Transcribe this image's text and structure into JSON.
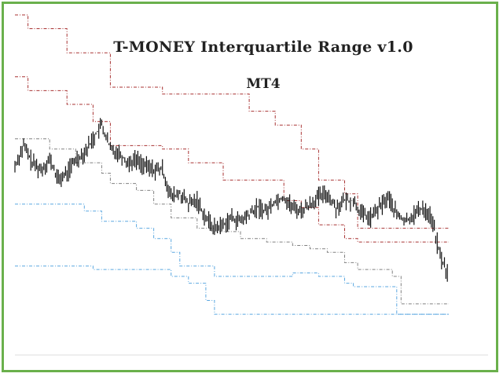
{
  "chart_data": {
    "type": "line",
    "title": "T-MONEY Interquartile Range v1.0",
    "subtitle": "MT4",
    "xlabel": "",
    "ylabel": "",
    "grid": false,
    "legend": "none",
    "ylim": [
      0,
      100
    ],
    "xlim": [
      0,
      100
    ],
    "price": {
      "name": "",
      "color": "#111111",
      "x": [
        0,
        2,
        4,
        6,
        8,
        10,
        12,
        14,
        16,
        18,
        20,
        22,
        24,
        26,
        28,
        30,
        32,
        34,
        36,
        38,
        40,
        42,
        44,
        46,
        48,
        50,
        52,
        54,
        56,
        58,
        60,
        62,
        64,
        66,
        68,
        70,
        72,
        74,
        76,
        78,
        80,
        82,
        84,
        86,
        88,
        90,
        92,
        94,
        96,
        98,
        100
      ],
      "y": [
        56,
        62,
        57,
        55,
        58,
        52,
        54,
        58,
        60,
        64,
        68,
        61,
        60,
        57,
        58,
        56,
        55,
        55,
        47,
        48,
        45,
        46,
        41,
        38,
        39,
        41,
        40,
        42,
        44,
        43,
        46,
        47,
        44,
        43,
        45,
        47,
        48,
        44,
        46,
        46,
        42,
        41,
        44,
        47,
        42,
        40,
        42,
        44,
        41,
        30,
        24
      ]
    },
    "bands": [
      {
        "name": "",
        "color": "#a83232",
        "x": [
          0,
          3,
          3,
          12,
          12,
          22,
          22,
          34,
          34,
          40,
          40,
          48,
          48,
          54,
          54,
          60,
          60,
          66,
          66,
          70,
          70,
          76,
          76,
          79,
          79,
          100
        ],
        "y": [
          100,
          100,
          96,
          96,
          89,
          89,
          79,
          79,
          77,
          77,
          77,
          77,
          77,
          77,
          72,
          72,
          68,
          68,
          61,
          61,
          52,
          52,
          48,
          48,
          38,
          38
        ]
      },
      {
        "name": "",
        "color": "#a83232",
        "x": [
          0,
          3,
          3,
          12,
          12,
          18,
          18,
          22,
          22,
          34,
          34,
          40,
          40,
          48,
          48,
          56,
          56,
          62,
          62,
          66,
          66,
          70,
          70,
          76,
          76,
          79,
          79,
          100
        ],
        "y": [
          82,
          82,
          78,
          78,
          74,
          74,
          69,
          69,
          62,
          62,
          61,
          61,
          57,
          57,
          52,
          52,
          52,
          52,
          46,
          46,
          44,
          44,
          39,
          39,
          35,
          35,
          34,
          34
        ]
      },
      {
        "name": "",
        "color": "#808080",
        "x": [
          0,
          8,
          8,
          14,
          14,
          20,
          20,
          22,
          22,
          28,
          28,
          32,
          32,
          36,
          36,
          42,
          42,
          46,
          46,
          52,
          52,
          58,
          58,
          64,
          64,
          68,
          68,
          72,
          72,
          76,
          76,
          79,
          79,
          82,
          82,
          87,
          87,
          89,
          89,
          100
        ],
        "y": [
          64,
          64,
          61,
          61,
          57,
          57,
          54,
          54,
          51,
          51,
          49,
          49,
          45,
          45,
          41,
          41,
          38,
          38,
          37,
          37,
          35,
          35,
          34,
          34,
          33,
          33,
          32,
          32,
          31,
          31,
          28,
          28,
          26,
          26,
          26,
          26,
          24,
          24,
          16,
          16
        ]
      },
      {
        "name": "",
        "color": "#5aa7e0",
        "x": [
          0,
          16,
          16,
          20,
          20,
          28,
          28,
          32,
          32,
          36,
          36,
          38,
          38,
          46,
          46,
          60,
          60,
          64,
          64,
          70,
          70,
          76,
          76,
          78,
          78,
          88,
          88,
          100
        ],
        "y": [
          45,
          45,
          43,
          43,
          40,
          40,
          38,
          38,
          35,
          35,
          31,
          31,
          27,
          27,
          24,
          24,
          24,
          24,
          25,
          25,
          24,
          24,
          22,
          22,
          21,
          21,
          13,
          13
        ]
      },
      {
        "name": "",
        "color": "#5aa7e0",
        "x": [
          0,
          18,
          18,
          30,
          30,
          36,
          36,
          40,
          40,
          44,
          44,
          46,
          46,
          60,
          60,
          62,
          62,
          76,
          76,
          84,
          84,
          86,
          86,
          100
        ],
        "y": [
          27,
          27,
          26,
          26,
          26,
          26,
          24,
          24,
          22,
          22,
          17,
          17,
          13,
          13,
          13,
          13,
          13,
          13,
          13,
          13,
          13,
          13,
          13,
          13
        ]
      }
    ]
  }
}
